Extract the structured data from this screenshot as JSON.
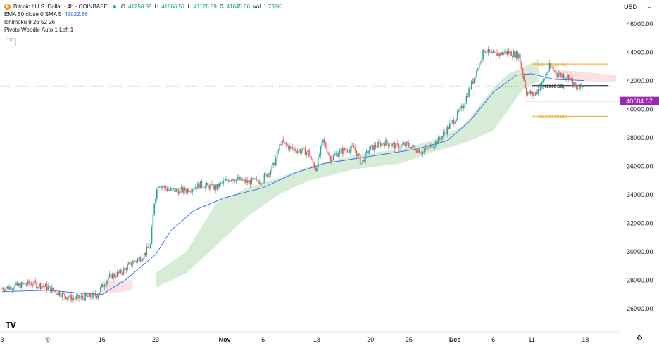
{
  "header": {
    "logo_glyph": "₿",
    "symbol": "Bitcoin / U.S. Dollar · 4h · COINBASE",
    "ohlc": {
      "o_label": "O",
      "o": "41250.89",
      "h_label": "H",
      "h": "41666.57",
      "l_label": "L",
      "l": "41128.59",
      "c_label": "C",
      "c": "41645.66",
      "vol_label": "Vol",
      "vol": "1.739K"
    },
    "indicators": [
      {
        "label": "EMA 50 close 0 SMA 5",
        "value": "42022.86"
      },
      {
        "label": "Ichimoku 9 26 52 26",
        "value": ""
      },
      {
        "label": "Pivots Woodie Auto 1 Left 1",
        "value": ""
      }
    ],
    "collapse_glyph": "⌃"
  },
  "currency": {
    "label": "USD",
    "chevron": "⌄"
  },
  "footer": {
    "logo": "TV",
    "settings_glyph": "⚙"
  },
  "colors": {
    "up": "#26a69a",
    "down": "#ef5350",
    "ema": "#2962ff",
    "cloud_bull": "#c8e6c9",
    "cloud_bear": "#f8d7da",
    "pivot": "#9c27b0",
    "r1s1": "#f5a623",
    "price_tag": "#9c27b0"
  },
  "chart_data": {
    "type": "line",
    "title": "Bitcoin / U.S. Dollar · 4h · COINBASE",
    "xlabel": "",
    "ylabel": "",
    "ylim": [
      25500,
      47000
    ],
    "y_ticks": [
      "46000.00",
      "44000.00",
      "42000.00",
      "40000.00",
      "38000.00",
      "36000.00",
      "34000.00",
      "32000.00",
      "30000.00",
      "28000.00",
      "26000.00"
    ],
    "x_ticks": [
      {
        "label": "3",
        "d": 0
      },
      {
        "label": "9",
        "d": 6
      },
      {
        "label": "16",
        "d": 13
      },
      {
        "label": "23",
        "d": 20
      },
      {
        "label": "Nov",
        "d": 29
      },
      {
        "label": "6",
        "d": 34
      },
      {
        "label": "13",
        "d": 41
      },
      {
        "label": "20",
        "d": 48
      },
      {
        "label": "25",
        "d": 53
      },
      {
        "label": "Dec",
        "d": 59
      },
      {
        "label": "6",
        "d": 64
      },
      {
        "label": "11",
        "d": 69
      },
      {
        "label": "18",
        "d": 76
      }
    ],
    "price_series": [
      {
        "d": 0,
        "p": 27400
      },
      {
        "d": 2,
        "p": 27600
      },
      {
        "d": 4,
        "p": 27800
      },
      {
        "d": 6,
        "p": 27500
      },
      {
        "d": 8,
        "p": 27000
      },
      {
        "d": 9.5,
        "p": 26700
      },
      {
        "d": 11,
        "p": 26800
      },
      {
        "d": 12.5,
        "p": 26950
      },
      {
        "d": 13,
        "p": 27400
      },
      {
        "d": 14,
        "p": 28200
      },
      {
        "d": 15.5,
        "p": 28500
      },
      {
        "d": 17,
        "p": 29200
      },
      {
        "d": 18.5,
        "p": 29700
      },
      {
        "d": 19.5,
        "p": 30500
      },
      {
        "d": 20,
        "p": 33500
      },
      {
        "d": 20.5,
        "p": 34800
      },
      {
        "d": 22,
        "p": 34300
      },
      {
        "d": 24,
        "p": 34300
      },
      {
        "d": 26,
        "p": 34700
      },
      {
        "d": 28,
        "p": 34500
      },
      {
        "d": 30,
        "p": 35200
      },
      {
        "d": 32,
        "p": 34900
      },
      {
        "d": 34,
        "p": 35000
      },
      {
        "d": 35.5,
        "p": 36000
      },
      {
        "d": 36.5,
        "p": 37700
      },
      {
        "d": 38,
        "p": 37200
      },
      {
        "d": 40,
        "p": 37000
      },
      {
        "d": 41,
        "p": 35800
      },
      {
        "d": 42,
        "p": 37800
      },
      {
        "d": 43,
        "p": 36500
      },
      {
        "d": 44,
        "p": 37000
      },
      {
        "d": 46,
        "p": 37300
      },
      {
        "d": 47,
        "p": 36200
      },
      {
        "d": 48,
        "p": 37200
      },
      {
        "d": 50,
        "p": 37700
      },
      {
        "d": 51.5,
        "p": 37400
      },
      {
        "d": 53,
        "p": 37500
      },
      {
        "d": 55,
        "p": 37000
      },
      {
        "d": 57,
        "p": 37800
      },
      {
        "d": 58,
        "p": 38500
      },
      {
        "d": 60,
        "p": 40000
      },
      {
        "d": 61.5,
        "p": 42000
      },
      {
        "d": 63,
        "p": 44200
      },
      {
        "d": 64,
        "p": 43800
      },
      {
        "d": 66,
        "p": 44000
      },
      {
        "d": 67.5,
        "p": 43800
      },
      {
        "d": 68.5,
        "p": 41200
      },
      {
        "d": 69.5,
        "p": 41000
      },
      {
        "d": 70.5,
        "p": 41800
      },
      {
        "d": 71.5,
        "p": 43000
      },
      {
        "d": 72.5,
        "p": 42500
      },
      {
        "d": 74,
        "p": 42300
      },
      {
        "d": 75,
        "p": 41400
      },
      {
        "d": 75.8,
        "p": 41645.66
      }
    ],
    "ema_series": [
      {
        "d": 0,
        "p": 27200
      },
      {
        "d": 6,
        "p": 27300
      },
      {
        "d": 10,
        "p": 27100
      },
      {
        "d": 13,
        "p": 27000
      },
      {
        "d": 16,
        "p": 28000
      },
      {
        "d": 20,
        "p": 29800
      },
      {
        "d": 22,
        "p": 31500
      },
      {
        "d": 25,
        "p": 32900
      },
      {
        "d": 29,
        "p": 33800
      },
      {
        "d": 34,
        "p": 34500
      },
      {
        "d": 38,
        "p": 35500
      },
      {
        "d": 42,
        "p": 36200
      },
      {
        "d": 48,
        "p": 36700
      },
      {
        "d": 54,
        "p": 37200
      },
      {
        "d": 58,
        "p": 37800
      },
      {
        "d": 61,
        "p": 39200
      },
      {
        "d": 64,
        "p": 41200
      },
      {
        "d": 67,
        "p": 42400
      },
      {
        "d": 69,
        "p": 42500
      },
      {
        "d": 72,
        "p": 42100
      },
      {
        "d": 75.8,
        "p": 42022.86
      }
    ],
    "cloud_bull": [
      {
        "d": 20,
        "hi": 28500,
        "lo": 27500
      },
      {
        "d": 24,
        "hi": 30000,
        "lo": 28500
      },
      {
        "d": 28,
        "hi": 33500,
        "lo": 30500
      },
      {
        "d": 32,
        "hi": 34500,
        "lo": 32500
      },
      {
        "d": 36,
        "hi": 35200,
        "lo": 34000
      },
      {
        "d": 40,
        "hi": 36000,
        "lo": 35000
      },
      {
        "d": 46,
        "hi": 36800,
        "lo": 35800
      },
      {
        "d": 52,
        "hi": 37200,
        "lo": 36200
      },
      {
        "d": 56,
        "hi": 37800,
        "lo": 37000
      },
      {
        "d": 60,
        "hi": 38800,
        "lo": 37600
      },
      {
        "d": 64,
        "hi": 41500,
        "lo": 38500
      },
      {
        "d": 66,
        "hi": 42500,
        "lo": 40000
      },
      {
        "d": 68,
        "hi": 43000,
        "lo": 41500
      },
      {
        "d": 70,
        "hi": 43500,
        "lo": 42000
      }
    ],
    "cloud_bear": [
      {
        "d": 13,
        "hi": 28000,
        "lo": 27000
      },
      {
        "d": 17,
        "hi": 28000,
        "lo": 27300
      },
      {
        "d": 72,
        "hi": 42800,
        "lo": 42100
      },
      {
        "d": 76,
        "hi": 42600,
        "lo": 42000
      },
      {
        "d": 80,
        "hi": 42400,
        "lo": 41900
      }
    ],
    "pivots": [
      {
        "name": "R1",
        "value": 43180.48,
        "label": "R1 (43180.48)"
      },
      {
        "name": "P",
        "value": 41665.25,
        "label": "P (41665.25)"
      },
      {
        "name": "S1",
        "value": 39518.88,
        "label": "S1 (39518.88)"
      }
    ],
    "pivot_range": {
      "d_start": 69,
      "d_end": 79
    },
    "support_line": 40584.67,
    "last_price_tag": "40584.67",
    "reference_line": 41645.66
  }
}
